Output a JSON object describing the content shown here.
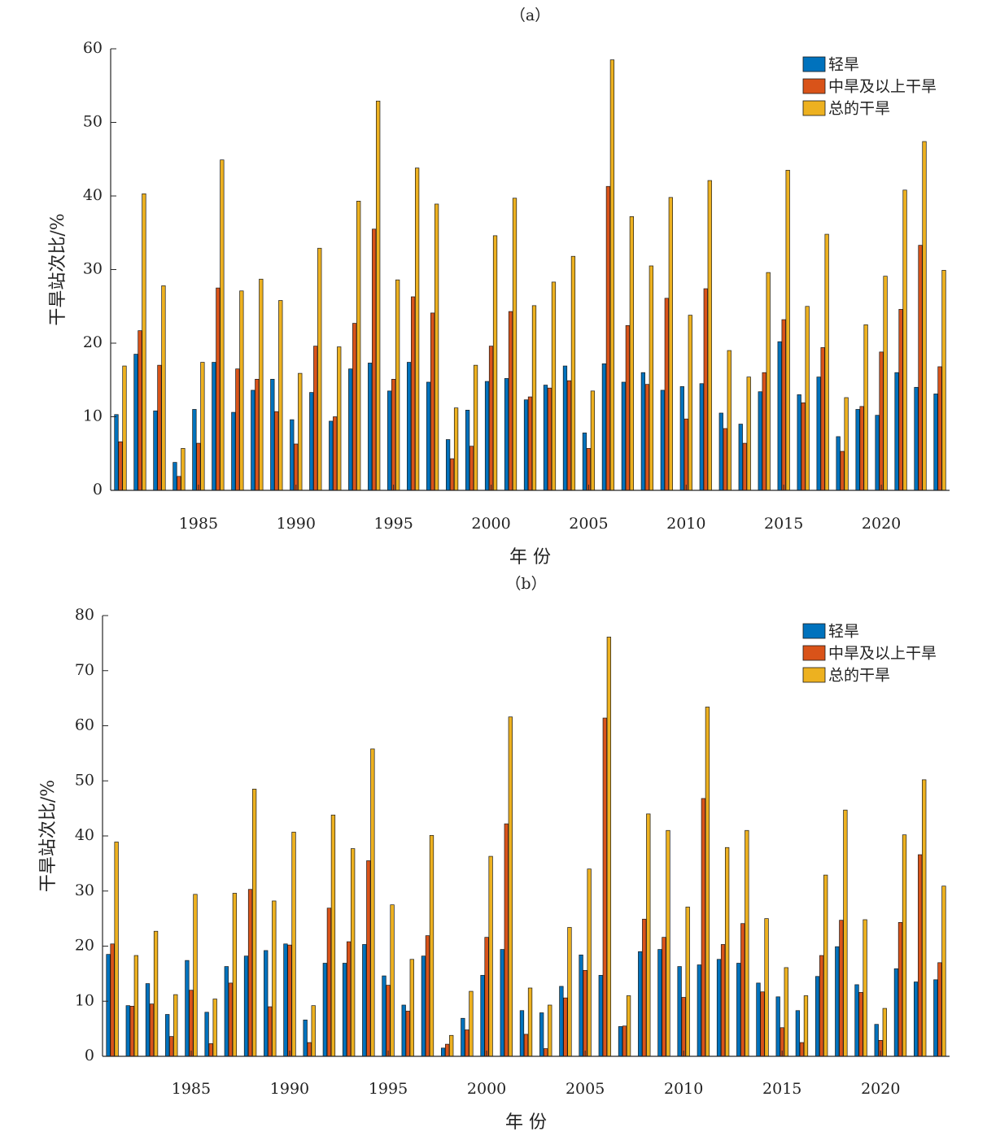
{
  "chart_data": [
    {
      "panel_label": "（a）",
      "type": "bar",
      "xlabel": "年 份",
      "ylabel": "干旱站次比/%",
      "ylim": [
        0,
        60
      ],
      "yticks": [
        0,
        10,
        20,
        30,
        40,
        50,
        60
      ],
      "xticks": [
        1985,
        1990,
        1995,
        2000,
        2005,
        2010,
        2015,
        2020
      ],
      "legend": "top-right",
      "grid": false,
      "categories": [
        1981,
        1982,
        1983,
        1984,
        1985,
        1986,
        1987,
        1988,
        1989,
        1990,
        1991,
        1992,
        1993,
        1994,
        1995,
        1996,
        1997,
        1998,
        1999,
        2000,
        2001,
        2002,
        2003,
        2004,
        2005,
        2006,
        2007,
        2008,
        2009,
        2010,
        2011,
        2012,
        2013,
        2014,
        2015,
        2016,
        2017,
        2018,
        2019,
        2020,
        2021,
        2022,
        2023
      ],
      "series": [
        {
          "name": "轻旱",
          "color": "#0072BD",
          "values": [
            10.3,
            18.5,
            10.8,
            3.8,
            11.0,
            17.4,
            10.6,
            13.6,
            15.1,
            9.6,
            13.3,
            9.4,
            16.5,
            17.3,
            13.5,
            17.4,
            14.7,
            6.9,
            10.9,
            14.8,
            15.2,
            12.3,
            14.3,
            16.9,
            7.8,
            17.2,
            14.7,
            16.0,
            13.6,
            14.1,
            14.5,
            10.5,
            9.0,
            13.4,
            20.2,
            13.0,
            15.4,
            7.3,
            11.0,
            10.2,
            16.0,
            14.0,
            13.1
          ]
        },
        {
          "name": "中旱及以上干旱",
          "color": "#D95319",
          "values": [
            6.6,
            21.7,
            17.0,
            1.9,
            6.4,
            27.5,
            16.5,
            15.1,
            10.7,
            6.3,
            19.6,
            10.0,
            22.7,
            35.5,
            15.1,
            26.3,
            24.1,
            4.3,
            6.0,
            19.6,
            24.3,
            12.7,
            13.9,
            14.9,
            5.7,
            41.3,
            22.4,
            14.4,
            26.1,
            9.7,
            27.4,
            8.4,
            6.4,
            16.0,
            23.2,
            11.9,
            19.4,
            5.3,
            11.4,
            18.8,
            24.6,
            33.3,
            16.8
          ]
        },
        {
          "name": "总的干旱",
          "color": "#EDB120",
          "values": [
            16.9,
            40.3,
            27.8,
            5.7,
            17.4,
            44.9,
            27.1,
            28.7,
            25.8,
            15.9,
            32.9,
            19.5,
            39.3,
            52.9,
            28.6,
            43.8,
            38.9,
            11.2,
            17.0,
            34.6,
            39.7,
            25.1,
            28.3,
            31.8,
            13.5,
            58.5,
            37.2,
            30.5,
            39.8,
            23.8,
            42.1,
            19.0,
            15.4,
            29.6,
            43.5,
            25.0,
            34.8,
            12.6,
            22.5,
            29.1,
            40.8,
            47.4,
            29.9
          ]
        }
      ]
    },
    {
      "panel_label": "（b）",
      "type": "bar",
      "xlabel": "年 份",
      "ylabel": "干旱站次比/%",
      "ylim": [
        0,
        80
      ],
      "yticks": [
        0,
        10,
        20,
        30,
        40,
        50,
        60,
        70,
        80
      ],
      "xticks": [
        1985,
        1990,
        1995,
        2000,
        2005,
        2010,
        2015,
        2020
      ],
      "legend": "top-right",
      "grid": false,
      "categories": [
        1981,
        1982,
        1983,
        1984,
        1985,
        1986,
        1987,
        1988,
        1989,
        1990,
        1991,
        1992,
        1993,
        1994,
        1995,
        1996,
        1997,
        1998,
        1999,
        2000,
        2001,
        2002,
        2003,
        2004,
        2005,
        2006,
        2007,
        2008,
        2009,
        2010,
        2011,
        2012,
        2013,
        2014,
        2015,
        2016,
        2017,
        2018,
        2019,
        2020,
        2021,
        2022,
        2023
      ],
      "series": [
        {
          "name": "轻旱",
          "color": "#0072BD",
          "values": [
            18.5,
            9.2,
            13.2,
            7.6,
            17.4,
            8.0,
            16.3,
            18.2,
            19.2,
            20.4,
            6.6,
            16.9,
            16.9,
            20.3,
            14.6,
            9.3,
            18.2,
            1.5,
            6.9,
            14.7,
            19.4,
            8.3,
            7.9,
            12.7,
            18.4,
            14.7,
            5.4,
            19.0,
            19.4,
            16.3,
            16.6,
            17.6,
            16.9,
            13.3,
            10.8,
            8.3,
            14.5,
            19.9,
            13.0,
            5.8,
            15.9,
            13.5,
            13.9
          ]
        },
        {
          "name": "中旱及以上干旱",
          "color": "#D95319",
          "values": [
            20.4,
            9.1,
            9.5,
            3.6,
            12.0,
            2.3,
            13.3,
            30.3,
            9.0,
            20.2,
            2.5,
            26.9,
            20.8,
            35.5,
            12.9,
            8.2,
            21.9,
            2.2,
            4.8,
            21.6,
            42.2,
            4.0,
            1.4,
            10.6,
            15.6,
            61.4,
            5.5,
            24.9,
            21.6,
            10.7,
            46.8,
            20.3,
            24.1,
            11.7,
            5.2,
            2.5,
            18.3,
            24.7,
            11.6,
            2.9,
            24.3,
            36.6,
            17.0
          ]
        },
        {
          "name": "总的干旱",
          "color": "#EDB120",
          "values": [
            38.9,
            18.3,
            22.7,
            11.2,
            29.4,
            10.4,
            29.6,
            48.5,
            28.2,
            40.7,
            9.2,
            43.8,
            37.7,
            55.8,
            27.5,
            17.6,
            40.1,
            3.8,
            11.8,
            36.3,
            61.6,
            12.4,
            9.3,
            23.4,
            34.0,
            76.1,
            11.0,
            44.0,
            41.0,
            27.1,
            63.4,
            37.9,
            41.0,
            25.0,
            16.1,
            11.0,
            32.9,
            44.7,
            24.8,
            8.7,
            40.2,
            50.2,
            30.9
          ]
        }
      ]
    }
  ]
}
